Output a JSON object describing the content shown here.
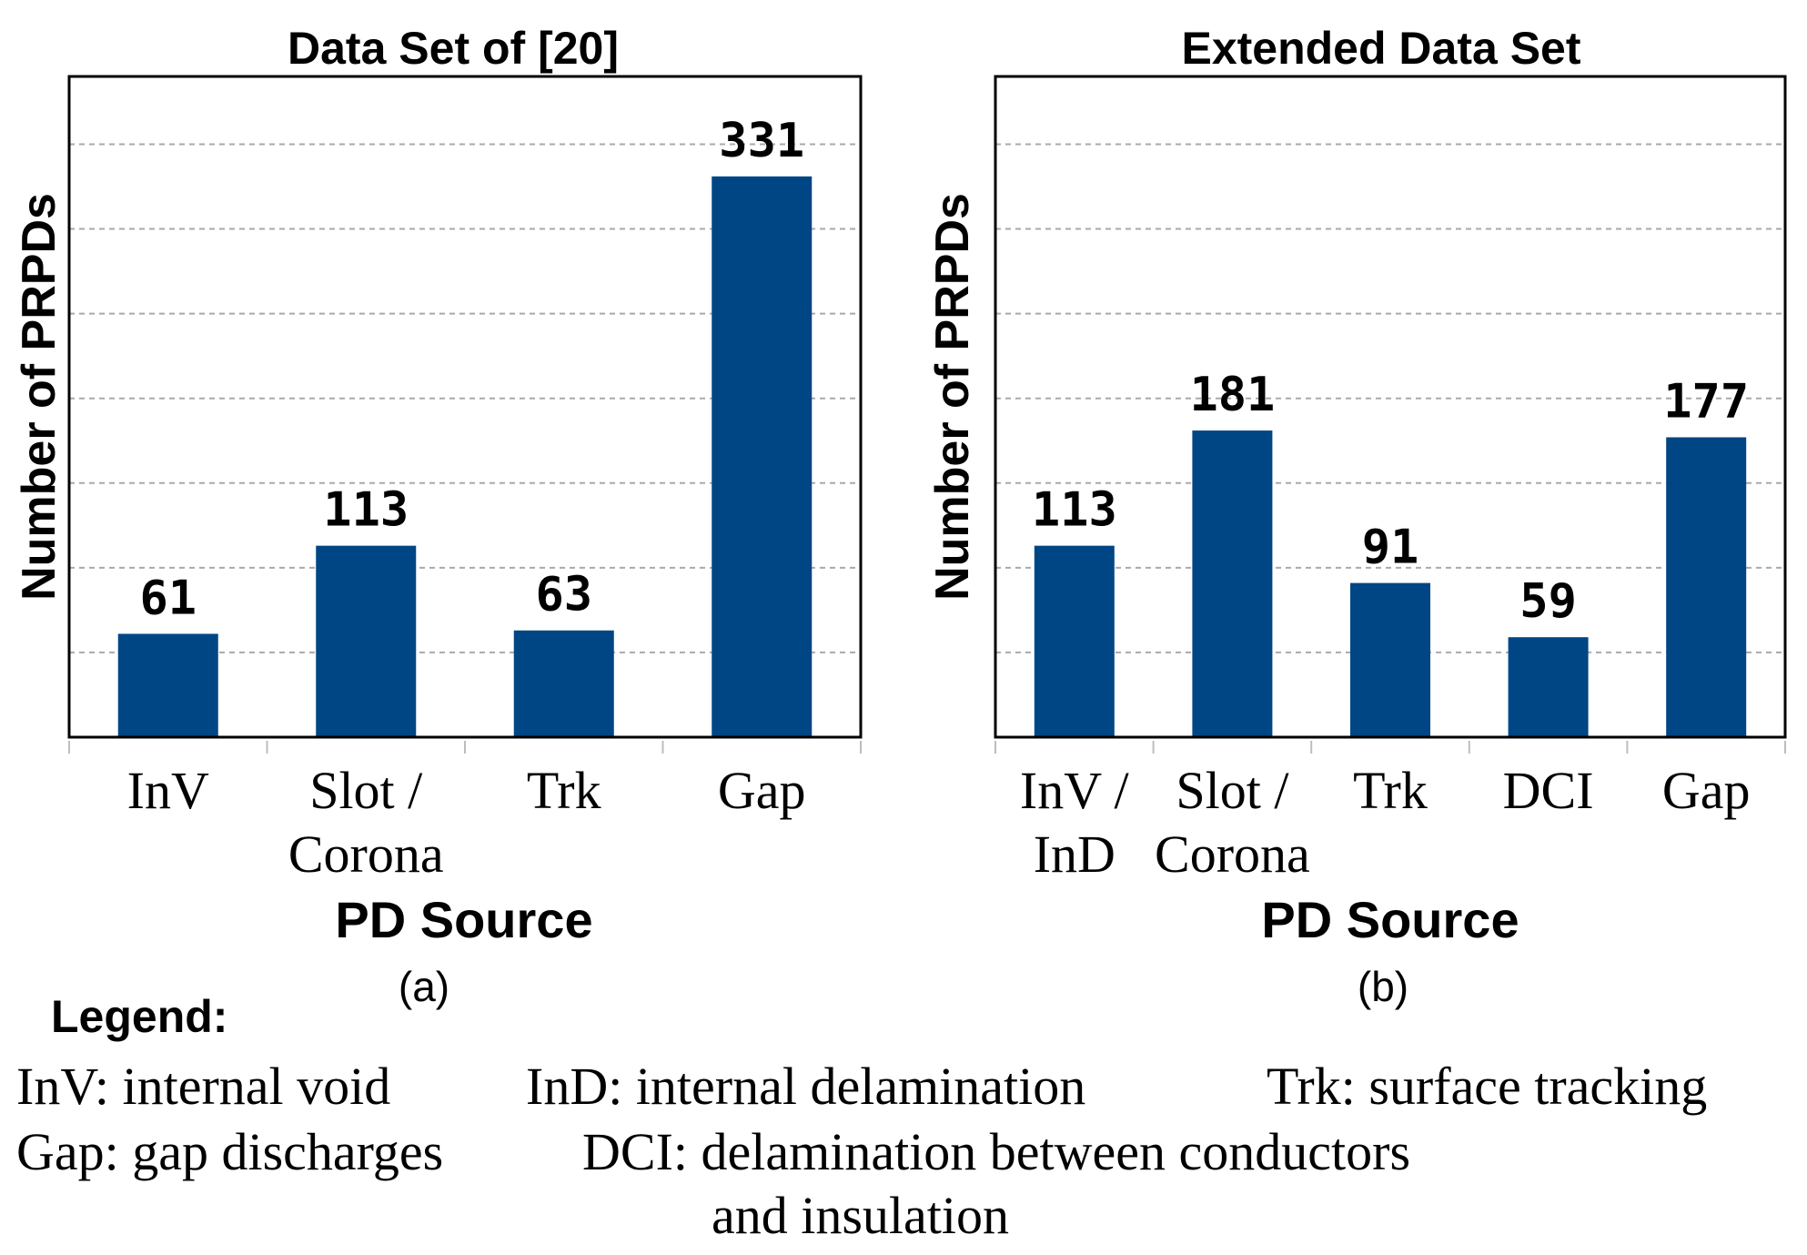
{
  "chart_data": [
    {
      "type": "bar",
      "title": "Data Set of [20]",
      "xlabel": "PD Source",
      "ylabel": "Number of PRPDs",
      "caption": "(a)",
      "categories": [
        [
          "InV"
        ],
        [
          "Slot /",
          "Corona"
        ],
        [
          "Trk"
        ],
        [
          "Gap"
        ]
      ],
      "values": [
        61,
        113,
        63,
        331
      ],
      "ylim": [
        0,
        390
      ],
      "gridlines": [
        50,
        100,
        150,
        200,
        250,
        300,
        350
      ],
      "grid": true,
      "bar_color": "#004685"
    },
    {
      "type": "bar",
      "title": "Extended Data Set",
      "xlabel": "PD Source",
      "ylabel": "Number of PRPDs",
      "caption": "(b)",
      "categories": [
        [
          "InV /",
          "InD"
        ],
        [
          "Slot /",
          "Corona"
        ],
        [
          "Trk"
        ],
        [
          "DCI"
        ],
        [
          "Gap"
        ]
      ],
      "values": [
        113,
        181,
        91,
        59,
        177
      ],
      "ylim": [
        0,
        390
      ],
      "gridlines": [
        50,
        100,
        150,
        200,
        250,
        300,
        350
      ],
      "grid": true,
      "bar_color": "#004685"
    }
  ],
  "legend": {
    "title": "Legend:",
    "inv": "InV: internal void",
    "ind": "InD: internal delamination",
    "trk": "Trk: surface tracking",
    "gap": "Gap: gap discharges",
    "dci_1": "DCI: delamination between conductors",
    "dci_2": "and insulation"
  }
}
